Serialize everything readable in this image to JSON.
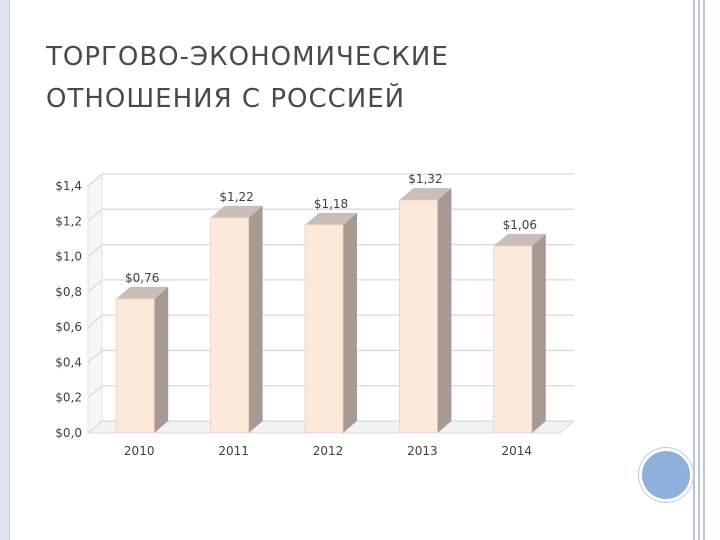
{
  "slide": {
    "title_line1": "ТОРГОВО-ЭКОНОМИЧЕСКИЕ",
    "title_line2": "ОТНОШЕНИЯ С РОССИЕЙ"
  },
  "colors": {
    "bar_front": "#fde9d9",
    "bar_side": "#a69a92",
    "bar_top": "#c9bfb8",
    "gridline": "#d9d9d9",
    "title_text": "#4a4a4a",
    "accent_circle": "#8fb0da"
  },
  "chart_data": {
    "type": "bar",
    "categories": [
      "2010",
      "2011",
      "2012",
      "2013",
      "2014"
    ],
    "values": [
      0.76,
      1.22,
      1.18,
      1.32,
      1.06
    ],
    "data_labels": [
      "$0,76",
      "$1,22",
      "$1,18",
      "$1,32",
      "$1,06"
    ],
    "y_ticks": [
      0,
      0.2,
      0.4,
      0.6,
      0.8,
      1.0,
      1.2,
      1.4
    ],
    "y_tick_labels": [
      "$0,0",
      "$0,2",
      "$0,4",
      "$0,6",
      "$0,8",
      "$1,0",
      "$1,2",
      "$1,4"
    ],
    "ylim": [
      0,
      1.4
    ],
    "grid": true,
    "style": "3d-column"
  }
}
